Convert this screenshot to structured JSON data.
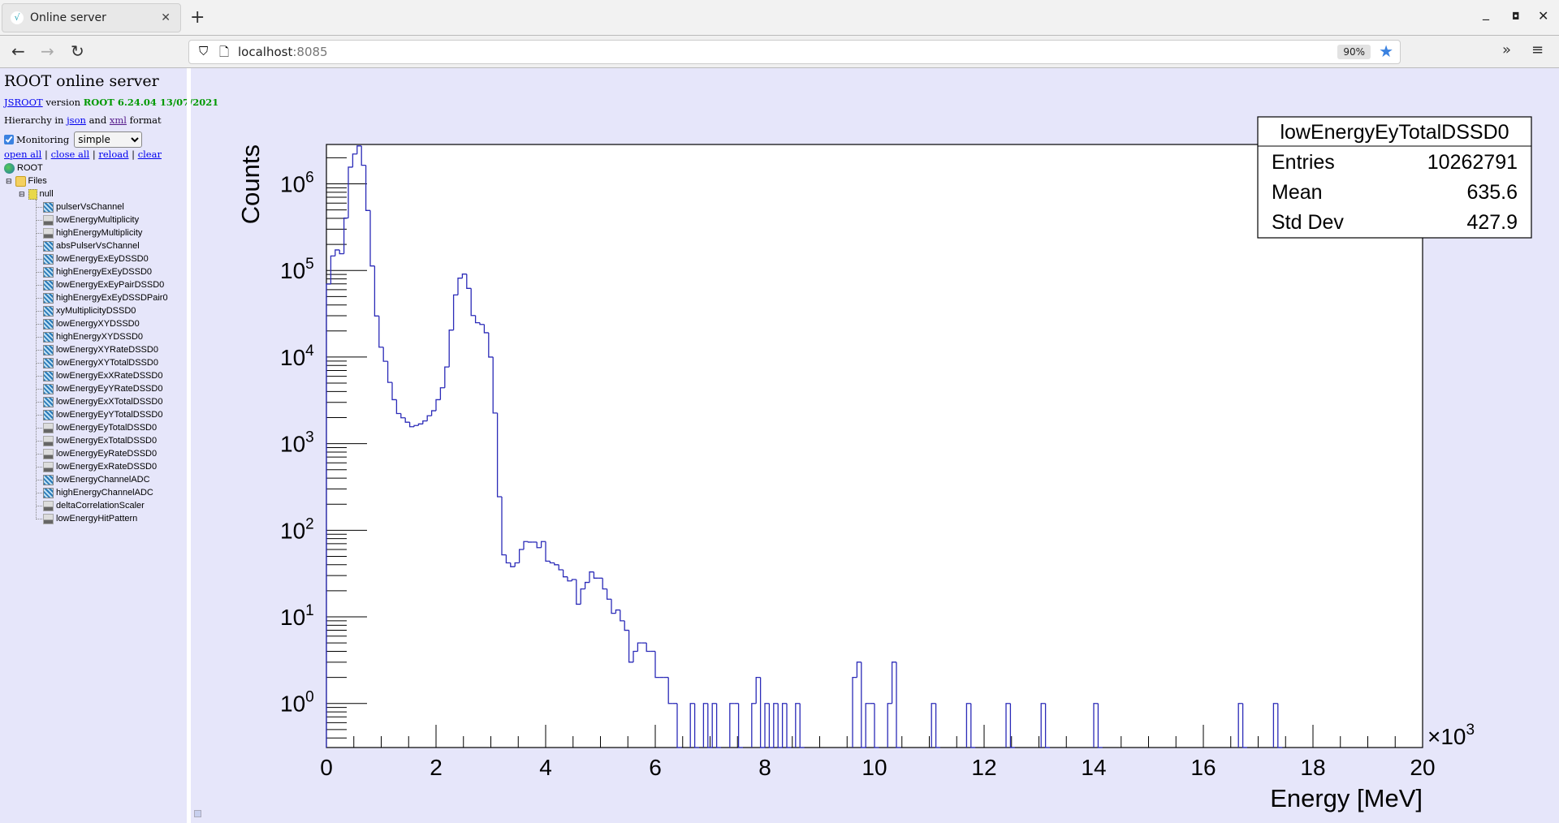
{
  "browser": {
    "tab_title": "Online server",
    "url_host": "localhost",
    "url_port": ":8085",
    "zoom": "90%",
    "icons": {
      "back": "arrow-left-icon",
      "forward": "arrow-right-icon",
      "reload": "reload-icon",
      "bookmark": "star-icon",
      "overflow": "chevron-double-right-icon",
      "menu": "hamburger-icon"
    }
  },
  "sidebar": {
    "title": "ROOT online server",
    "jsroot_link": "JSROOT",
    "version_word": "version",
    "version": "ROOT 6.24.04 13/07/2021",
    "hierarchy_prefix": "Hierarchy in",
    "json_link": "json",
    "and_word": "and",
    "xml_link": "xml",
    "format_word": "format",
    "monitoring_label": "Monitoring",
    "monitoring_checked": true,
    "monitoring_mode": "simple",
    "actions": [
      "open all",
      "close all",
      "reload",
      "clear"
    ],
    "tree": {
      "root": "ROOT",
      "files": "Files",
      "null_node": "null",
      "items": [
        {
          "name": "pulserVsChannel",
          "type": "2d"
        },
        {
          "name": "lowEnergyMultiplicity",
          "type": "1d"
        },
        {
          "name": "highEnergyMultiplicity",
          "type": "1d"
        },
        {
          "name": "absPulserVsChannel",
          "type": "2d"
        },
        {
          "name": "lowEnergyExEyDSSD0",
          "type": "2d"
        },
        {
          "name": "highEnergyExEyDSSD0",
          "type": "2d"
        },
        {
          "name": "lowEnergyExEyPairDSSD0",
          "type": "2d"
        },
        {
          "name": "highEnergyExEyDSSDPair0",
          "type": "2d"
        },
        {
          "name": "xyMultiplicityDSSD0",
          "type": "2d"
        },
        {
          "name": "lowEnergyXYDSSD0",
          "type": "2d"
        },
        {
          "name": "highEnergyXYDSSD0",
          "type": "2d"
        },
        {
          "name": "lowEnergyXYRateDSSD0",
          "type": "2d"
        },
        {
          "name": "lowEnergyXYTotalDSSD0",
          "type": "2d"
        },
        {
          "name": "lowEnergyExXRateDSSD0",
          "type": "2d"
        },
        {
          "name": "lowEnergyEyYRateDSSD0",
          "type": "2d"
        },
        {
          "name": "lowEnergyExXTotalDSSD0",
          "type": "2d"
        },
        {
          "name": "lowEnergyEyYTotalDSSD0",
          "type": "2d"
        },
        {
          "name": "lowEnergyEyTotalDSSD0",
          "type": "1d"
        },
        {
          "name": "lowEnergyExTotalDSSD0",
          "type": "1d"
        },
        {
          "name": "lowEnergyEyRateDSSD0",
          "type": "1d"
        },
        {
          "name": "lowEnergyExRateDSSD0",
          "type": "1d"
        },
        {
          "name": "lowEnergyChannelADC",
          "type": "2d"
        },
        {
          "name": "highEnergyChannelADC",
          "type": "2d"
        },
        {
          "name": "deltaCorrelationScaler",
          "type": "1d"
        },
        {
          "name": "lowEnergyHitPattern",
          "type": "1d"
        }
      ]
    }
  },
  "chart_data": {
    "type": "bar",
    "histogram": "step",
    "xlabel": "Energy [MeV]",
    "ylabel": "Counts",
    "x_multiplier": "×10",
    "x_multiplier_exp": "3",
    "xlim": [
      0,
      20000
    ],
    "ylim": [
      0.31,
      2850000
    ],
    "yscale": "log",
    "bin_width": 80,
    "x_tick_labels": [
      "0",
      "2",
      "4",
      "6",
      "8",
      "10",
      "12",
      "14",
      "16",
      "18",
      "20"
    ],
    "y_tick_exponents": [
      "0",
      "1",
      "2",
      "3",
      "4",
      "5",
      "6"
    ],
    "line_color": "#2b2bb8",
    "stats": {
      "title": "lowEnergyEyTotalDSSD0",
      "rows": [
        {
          "label": "Entries",
          "value": "10262791"
        },
        {
          "label": "Mean",
          "value": "635.6"
        },
        {
          "label": "Std Dev",
          "value": "427.9"
        }
      ]
    },
    "bins": [
      [
        0,
        69600
      ],
      [
        80,
        147000
      ],
      [
        160,
        172600
      ],
      [
        240,
        156000
      ],
      [
        320,
        403000
      ],
      [
        400,
        1560000
      ],
      [
        480,
        2210000
      ],
      [
        560,
        2740000
      ],
      [
        640,
        1640000
      ],
      [
        720,
        493000
      ],
      [
        800,
        112700
      ],
      [
        880,
        29800
      ],
      [
        960,
        13000
      ],
      [
        1040,
        8940
      ],
      [
        1120,
        5100
      ],
      [
        1200,
        3220
      ],
      [
        1280,
        2230
      ],
      [
        1360,
        1990
      ],
      [
        1440,
        1770
      ],
      [
        1520,
        1570
      ],
      [
        1600,
        1620
      ],
      [
        1680,
        1690
      ],
      [
        1760,
        1830
      ],
      [
        1840,
        2100
      ],
      [
        1920,
        2400
      ],
      [
        2000,
        3220
      ],
      [
        2080,
        4420
      ],
      [
        2160,
        7690
      ],
      [
        2240,
        20500
      ],
      [
        2320,
        52200
      ],
      [
        2400,
        81500
      ],
      [
        2480,
        90800
      ],
      [
        2560,
        62100
      ],
      [
        2640,
        30200
      ],
      [
        2720,
        24900
      ],
      [
        2800,
        23800
      ],
      [
        2880,
        19100
      ],
      [
        2960,
        10000
      ],
      [
        3040,
        2260
      ],
      [
        3120,
        244
      ],
      [
        3200,
        52
      ],
      [
        3280,
        42
      ],
      [
        3360,
        38
      ],
      [
        3440,
        42
      ],
      [
        3520,
        60
      ],
      [
        3600,
        74
      ],
      [
        3680,
        73
      ],
      [
        3760,
        73
      ],
      [
        3840,
        63
      ],
      [
        3920,
        74
      ],
      [
        4000,
        44
      ],
      [
        4080,
        42
      ],
      [
        4160,
        40
      ],
      [
        4240,
        35
      ],
      [
        4320,
        29
      ],
      [
        4400,
        26
      ],
      [
        4480,
        27
      ],
      [
        4560,
        14
      ],
      [
        4640,
        21
      ],
      [
        4720,
        25
      ],
      [
        4800,
        33
      ],
      [
        4880,
        28
      ],
      [
        4960,
        28
      ],
      [
        5040,
        21
      ],
      [
        5120,
        16
      ],
      [
        5200,
        11
      ],
      [
        5280,
        12
      ],
      [
        5360,
        9
      ],
      [
        5440,
        7
      ],
      [
        5520,
        3
      ],
      [
        5600,
        4
      ],
      [
        5680,
        5
      ],
      [
        5760,
        5
      ],
      [
        5840,
        4
      ],
      [
        5920,
        4
      ],
      [
        6000,
        2
      ],
      [
        6080,
        2
      ],
      [
        6160,
        2
      ],
      [
        6240,
        1
      ],
      [
        6320,
        1
      ],
      [
        6640,
        1
      ],
      [
        6880,
        1
      ],
      [
        7040,
        1
      ],
      [
        7360,
        1
      ],
      [
        7440,
        1
      ],
      [
        7760,
        1
      ],
      [
        7840,
        2
      ],
      [
        8000,
        1
      ],
      [
        8160,
        1
      ],
      [
        8320,
        1
      ],
      [
        8560,
        1
      ],
      [
        9600,
        2
      ],
      [
        9680,
        3
      ],
      [
        9840,
        1
      ],
      [
        9920,
        1
      ],
      [
        10240,
        1
      ],
      [
        10320,
        3
      ],
      [
        11040,
        1
      ],
      [
        11680,
        1
      ],
      [
        12400,
        1
      ],
      [
        13040,
        1
      ],
      [
        14000,
        1
      ],
      [
        16640,
        1
      ],
      [
        17280,
        1
      ]
    ]
  }
}
